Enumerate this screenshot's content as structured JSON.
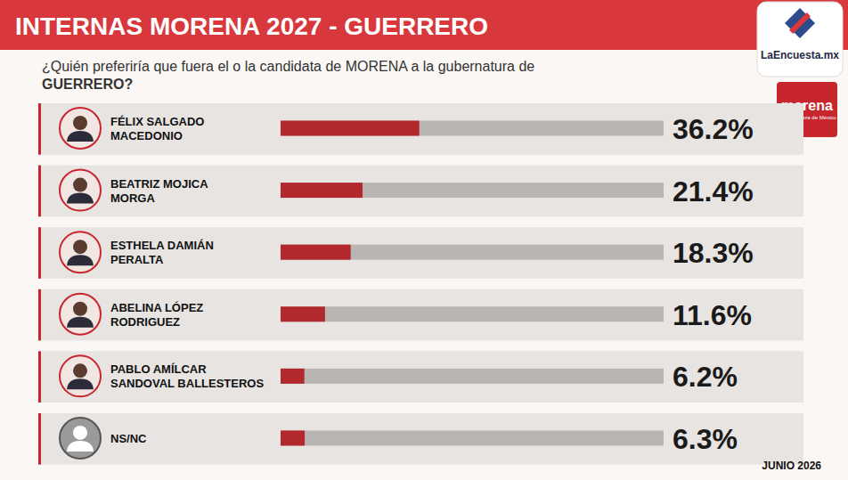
{
  "chart_data": {
    "type": "bar",
    "orientation": "horizontal",
    "title": "INTERNAS MORENA 2027 - GUERRERO",
    "subtitle": "¿Quién preferiría que fuera el o la candidata de MORENA a la gubernatura de GUERRERO?",
    "annotations": [
      "LaEncuesta.mx",
      "morena",
      "La esperanza de México",
      "JUNIO 2026"
    ],
    "categories": [
      "FÉLIX SALGADO MACEDONIO",
      "BEATRIZ MOJICA MORGA",
      "ESTHELA DAMIÁN PERALTA",
      "ABELINA LÓPEZ RODRIGUEZ",
      "PABLO AMÍLCAR SANDOVAL BALLESTEROS",
      "NS/NC"
    ],
    "values": [
      36.2,
      21.4,
      18.3,
      11.6,
      6.2,
      6.3
    ],
    "value_labels": [
      "36.2%",
      "21.4%",
      "18.3%",
      "11.6%",
      "6.2%",
      "6.3%"
    ],
    "color": "#b3282d",
    "xlim": [
      0,
      100
    ],
    "data_labels": true,
    "tick_labels": false,
    "grid": false
  }
}
